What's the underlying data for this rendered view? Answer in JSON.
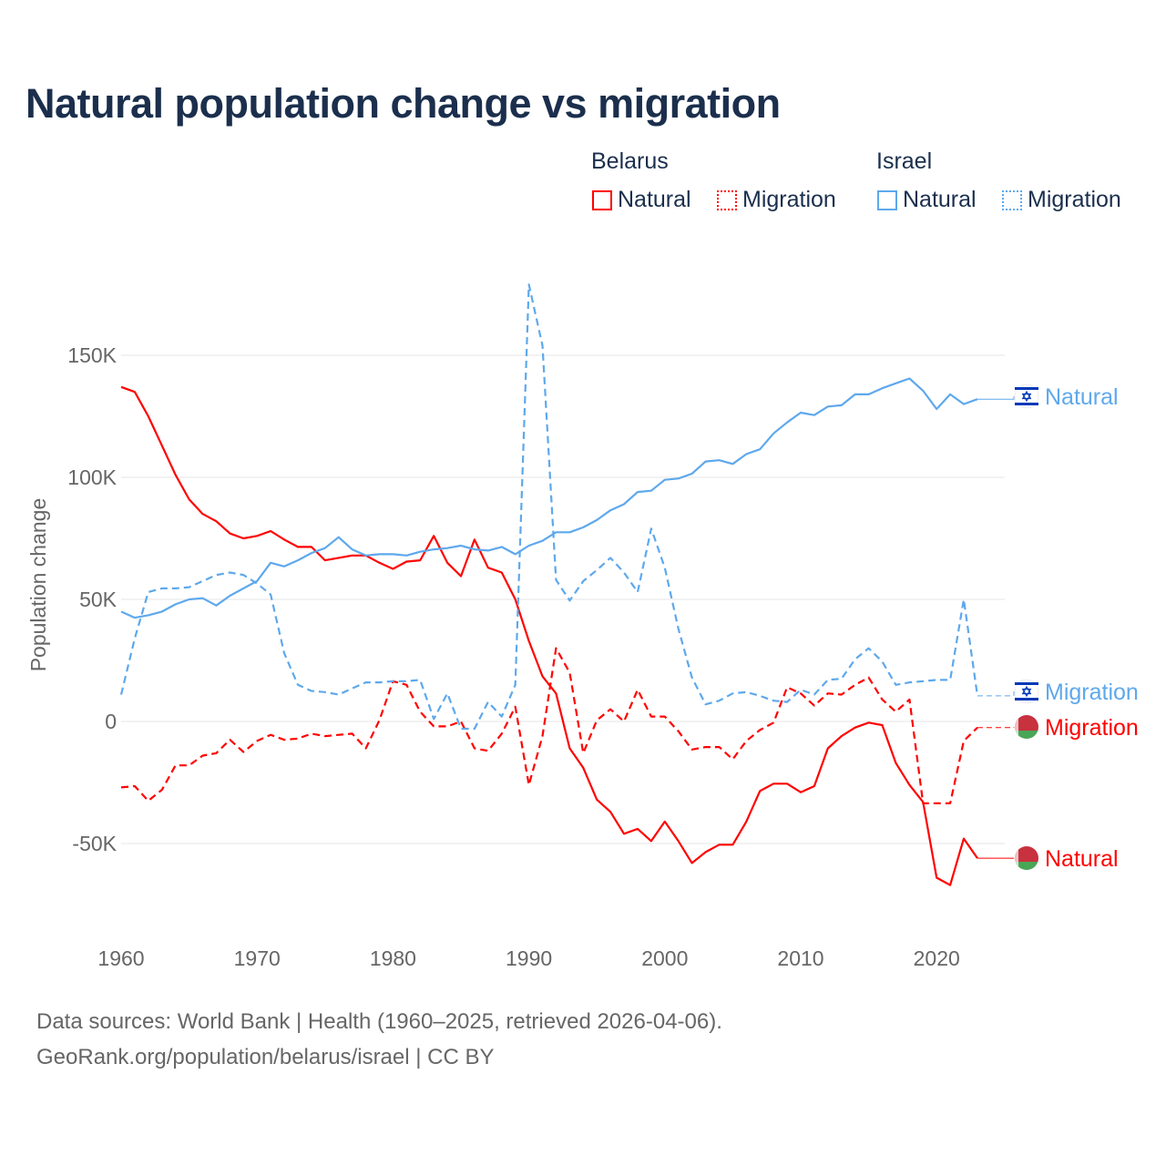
{
  "chart_data": {
    "type": "line",
    "title": "Natural population change vs migration",
    "xlabel": "",
    "ylabel": "Population change",
    "xlim": [
      1960,
      2025
    ],
    "ylim": [
      -80000,
      185000
    ],
    "x_ticks": [
      1960,
      1970,
      1980,
      1990,
      2000,
      2010,
      2020
    ],
    "x_tick_labels": [
      "1960",
      "1970",
      "1980",
      "1990",
      "2000",
      "2010",
      "2020"
    ],
    "y_ticks": [
      -50000,
      0,
      50000,
      100000,
      150000
    ],
    "y_tick_labels": [
      "-50K",
      "0",
      "50K",
      "100K",
      "150K"
    ],
    "grid": true,
    "legend": {
      "placement": "top-right",
      "groups": [
        {
          "name": "Belarus",
          "items": [
            "Natural",
            "Migration"
          ]
        },
        {
          "name": "Israel",
          "items": [
            "Natural",
            "Migration"
          ]
        }
      ]
    },
    "x_start": 1960,
    "series": [
      {
        "name": "Belarus Natural",
        "country": "Belarus",
        "kind": "Natural",
        "end_label": "Natural",
        "color": "#ff0000",
        "dash": false,
        "values": [
          137,
          135,
          125,
          113,
          101,
          91,
          85,
          82,
          77,
          75,
          76,
          78,
          74.5,
          71.5,
          71.5,
          66,
          67,
          68,
          68,
          65,
          62.5,
          65.5,
          66,
          76,
          65,
          59.5,
          74.5,
          63,
          61,
          50,
          33,
          18.5,
          11.5,
          -11,
          -19,
          -32,
          -37,
          -46,
          -44,
          -49,
          -41,
          -49,
          -58,
          -53.5,
          -50.5,
          -50.5,
          -41,
          -28.5,
          -25.5,
          -25.5,
          -29,
          -26.5,
          -11,
          -6,
          -2.5,
          -0.5,
          -1.5,
          -17,
          -26,
          -33,
          -64,
          -67,
          -48,
          -56
        ]
      },
      {
        "name": "Belarus Migration",
        "country": "Belarus",
        "kind": "Migration",
        "end_label": "Migration",
        "color": "#ff0000",
        "dash": true,
        "values": [
          -27,
          -26.5,
          -32.5,
          -28,
          -18,
          -18,
          -14,
          -13,
          -7.5,
          -12.5,
          -8,
          -5.5,
          -7.5,
          -7,
          -5,
          -6,
          -5.5,
          -5,
          -11,
          0.5,
          16.5,
          15,
          4,
          -2,
          -2,
          0,
          -11,
          -12,
          -5,
          6,
          -26,
          -6,
          30,
          20,
          -13,
          0.5,
          5,
          0,
          13,
          2,
          2,
          -4,
          -11.5,
          -10.5,
          -10.5,
          -15.5,
          -8,
          -3.5,
          -0.5,
          14,
          11.5,
          6.5,
          11.5,
          11,
          15,
          18,
          9,
          4,
          9,
          -33.5,
          -33.5,
          -33.5,
          -8,
          -2.5
        ]
      },
      {
        "name": "Israel Natural",
        "country": "Israel",
        "kind": "Natural",
        "end_label": "Natural",
        "color": "#5ea8ec",
        "dash": false,
        "values": [
          45,
          42.5,
          43.5,
          45,
          48,
          50,
          50.5,
          47.5,
          51.5,
          54.5,
          57.5,
          65,
          63.5,
          66,
          69,
          71,
          75.5,
          70.5,
          68,
          68.5,
          68.5,
          68,
          69.5,
          70.5,
          71,
          72,
          70.5,
          70,
          71.5,
          68.5,
          72,
          74,
          77.5,
          77.5,
          79.5,
          82.5,
          86.5,
          89,
          94,
          94.5,
          99,
          99.5,
          101.5,
          106.5,
          107,
          105.5,
          109.5,
          111.5,
          118,
          122.5,
          126.5,
          125.5,
          129,
          129.5,
          134,
          134,
          136.5,
          138.5,
          140.5,
          135.5,
          128,
          134,
          130,
          132
        ]
      },
      {
        "name": "Israel Migration",
        "country": "Israel",
        "kind": "Migration",
        "end_label": "Migration",
        "color": "#5ea8ec",
        "dash": true,
        "values": [
          11,
          34,
          53,
          54.5,
          54.5,
          55,
          57.5,
          60,
          61,
          60,
          56.5,
          52,
          28,
          15,
          12.5,
          12,
          11,
          13.5,
          16,
          16,
          16.5,
          16.5,
          17,
          1,
          11.5,
          -3,
          -3,
          8,
          2,
          15,
          179,
          154,
          58,
          49.5,
          57.5,
          62,
          67,
          61,
          53,
          79,
          63,
          38,
          18,
          7,
          8.5,
          11.5,
          12,
          10.5,
          8.5,
          8,
          13,
          11,
          17,
          17.5,
          25.5,
          30,
          24.5,
          15,
          16,
          16.5,
          17,
          17,
          50,
          10.5
        ]
      }
    ],
    "value_unit": "thousands"
  },
  "footer": {
    "line1": "Data sources: World Bank | Health (1960–2025, retrieved 2026-04-06).",
    "line2": "GeoRank.org/population/belarus/israel | CC BY"
  }
}
